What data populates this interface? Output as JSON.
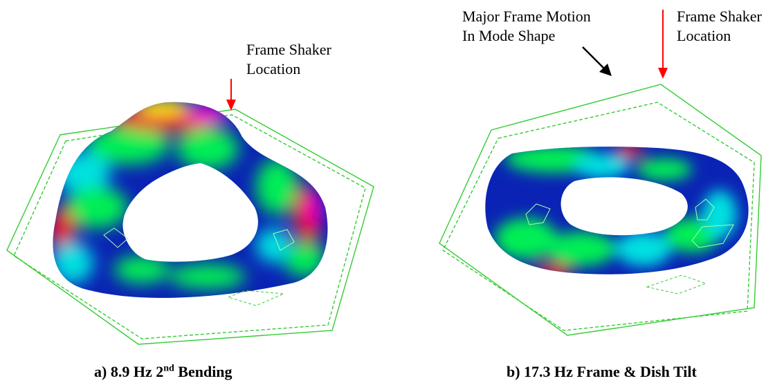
{
  "panel_a": {
    "shaker_label_line1": "Frame Shaker",
    "shaker_label_line2": "Location",
    "caption_prefix": "a) 8.9 Hz 2",
    "caption_sup": "nd",
    "caption_suffix": " Bending"
  },
  "panel_b": {
    "motion_label_line1": "Major Frame Motion",
    "motion_label_line2": "In Mode Shape",
    "shaker_label_line1": "Frame Shaker",
    "shaker_label_line2": "Location",
    "caption": "b) 17.3 Hz Frame & Dish Tilt"
  },
  "colors": {
    "frame": "#33cc33",
    "shaker_arrow": "#ff0000",
    "motion_arrow": "#000000",
    "mode_blue": "#0a23b4",
    "mode_green": "#00ee55",
    "mode_cyan": "#00e0e0",
    "mode_red": "#ee1133",
    "mode_yellow": "#ffee00",
    "mode_magenta": "#ff00cc"
  }
}
